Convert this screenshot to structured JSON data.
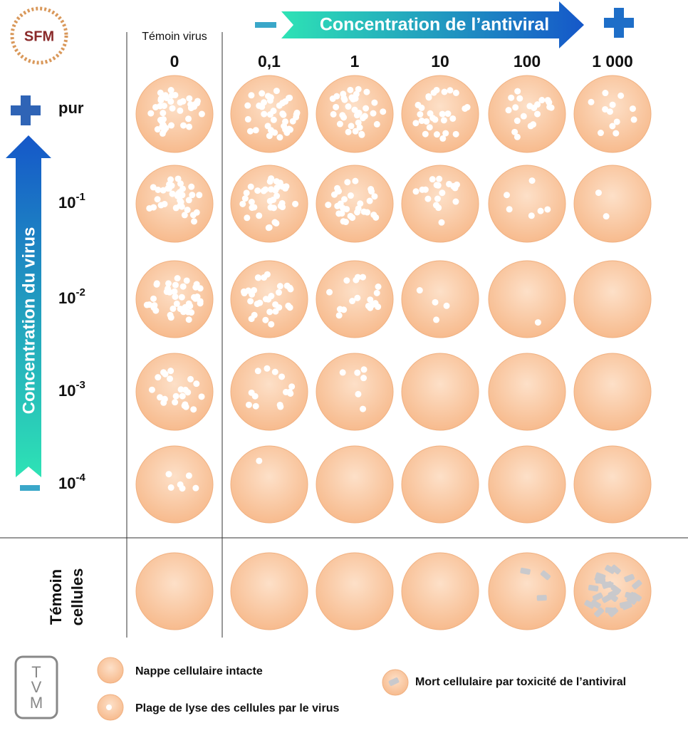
{
  "logo": "SFM",
  "header": {
    "control_virus": "Témoin virus",
    "antiviral_axis": "Concentration de l’antiviral",
    "columns": [
      "0",
      "0,1",
      "1",
      "10",
      "100",
      "1 000"
    ]
  },
  "rows": {
    "virus_axis": "Concentration du virus",
    "labels": [
      {
        "text": "pur"
      },
      {
        "base": "10",
        "exp": "-1"
      },
      {
        "base": "10",
        "exp": "-2"
      },
      {
        "base": "10",
        "exp": "-3"
      },
      {
        "base": "10",
        "exp": "-4"
      }
    ],
    "control_cells": [
      "Témoin",
      "cellules"
    ]
  },
  "legend": [
    "Nappe cellulaire intacte",
    "Plage de lyse des cellules par le virus",
    "Mort cellulaire par toxicité de l’antiviral"
  ],
  "footer_logo": [
    "T",
    "V",
    "M"
  ]
}
